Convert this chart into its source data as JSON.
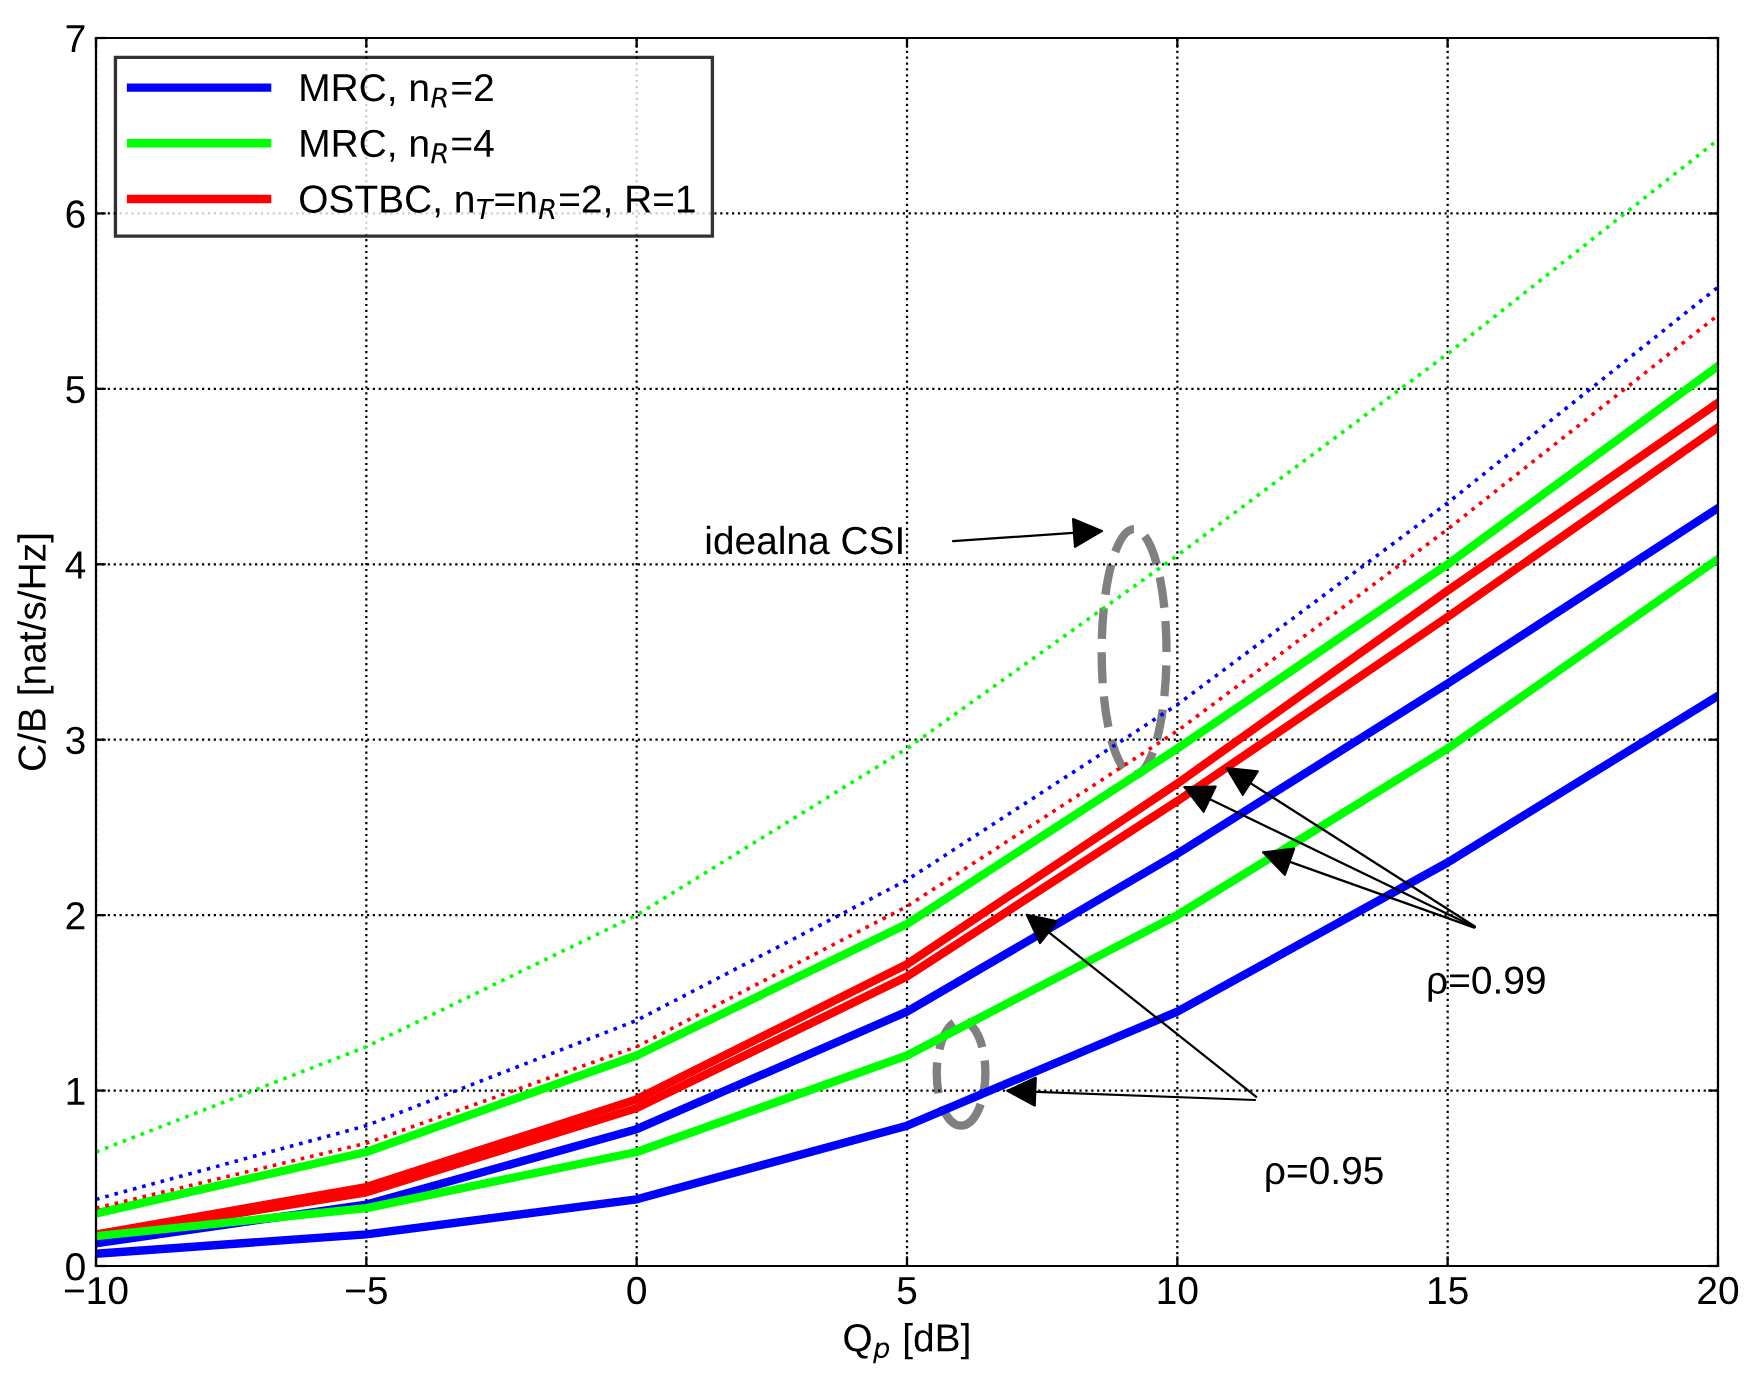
{
  "chart_data": {
    "type": "line",
    "xlabel": "Q$_{p}$ [dB]",
    "ylabel": "C/B [nat/s/Hz]",
    "x": [
      -10,
      -5,
      0,
      5,
      10,
      15,
      20
    ],
    "xlim": [
      -10,
      20
    ],
    "xticks": [
      {
        "value": -10,
        "label": "−10"
      },
      {
        "value": -5,
        "label": "−5"
      },
      0,
      5,
      10,
      15,
      20
    ],
    "ylim": [
      0,
      7
    ],
    "yticks": [
      0,
      1,
      2,
      3,
      4,
      5,
      6,
      7
    ],
    "grid": true,
    "legend": "top left",
    "marker": "none",
    "series": [
      {
        "name": "MRC, n$_{R}$=2",
        "color": "#0000ff",
        "values": [
          0.13,
          0.35,
          0.78,
          1.45,
          2.35,
          3.32,
          4.32
        ]
      },
      {
        "name": "MRC, n$_{R}$=4",
        "color": "#00ff00",
        "values": [
          0.3,
          0.65,
          1.2,
          1.95,
          2.95,
          4.0,
          5.13
        ]
      },
      {
        "name": "OSTBC, n$_{T}$=n$_{R}$=2, R=1",
        "color": "#ff0000",
        "values": [
          0.18,
          0.45,
          0.95,
          1.72,
          2.75,
          3.85,
          4.92
        ]
      },
      {
        "color": "#ff0000",
        "values": [
          0.17,
          0.42,
          0.9,
          1.65,
          2.65,
          3.7,
          4.78
        ]
      },
      {
        "color": "#00ff00",
        "values": [
          0.17,
          0.33,
          0.65,
          1.2,
          2.0,
          2.95,
          4.03
        ]
      },
      {
        "color": "#0000ff",
        "values": [
          0.07,
          0.18,
          0.38,
          0.8,
          1.45,
          2.3,
          3.25
        ]
      },
      {
        "color": "#00ff00",
        "line_style": "dotted",
        "values": [
          0.65,
          1.25,
          2.0,
          2.95,
          4.05,
          5.2,
          6.42
        ]
      },
      {
        "color": "#0000ff",
        "line_style": "dotted",
        "values": [
          0.38,
          0.8,
          1.4,
          2.2,
          3.2,
          4.35,
          5.58
        ]
      },
      {
        "color": "#ff0000",
        "line_style": "dotted",
        "values": [
          0.33,
          0.7,
          1.25,
          2.05,
          3.05,
          4.2,
          5.42
        ]
      }
    ],
    "annotations": [
      "idealna CSI",
      {
        "text": "ρ=0.99",
        "x": 10,
        "y": 2.75
      },
      "ρ=0.95"
    ]
  }
}
